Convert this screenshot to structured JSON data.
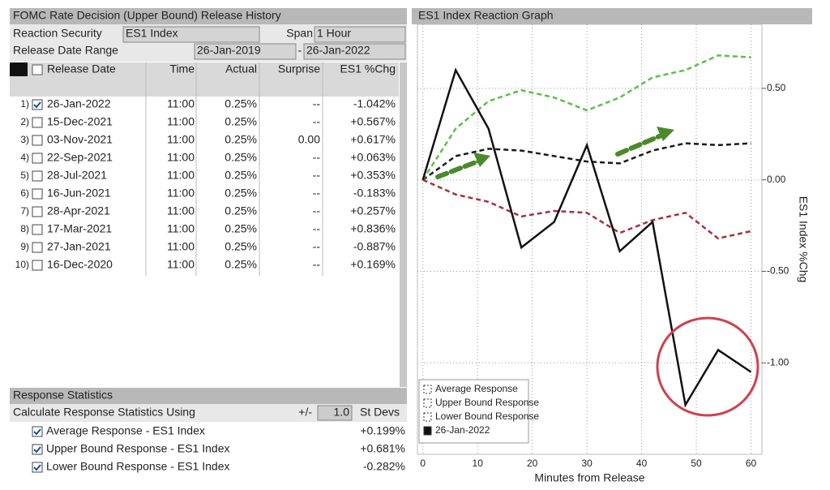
{
  "left_panel": {
    "title": "FOMC Rate Decision (Upper Bound) Release History",
    "reaction_security_label": "Reaction Security",
    "reaction_security": "ES1 Index",
    "span_label": "Span",
    "span": "1 Hour",
    "date_range_label": "Release Date Range",
    "date_from": "26-Jan-2019",
    "range_separator": "-",
    "date_to": "26-Jan-2022",
    "columns": [
      "Release Date",
      "Time",
      "Actual",
      "Surprise",
      "ES1 %Chg"
    ],
    "rows": [
      [
        "1)",
        "26-Jan-2022",
        "11:00",
        "0.25%",
        "--",
        "-1.042%"
      ],
      [
        "2)",
        "15-Dec-2021",
        "11:00",
        "0.25%",
        "--",
        "+0.567%"
      ],
      [
        "3)",
        "03-Nov-2021",
        "11:00",
        "0.25%",
        "0.00",
        "+0.617%"
      ],
      [
        "4)",
        "22-Sep-2021",
        "11:00",
        "0.25%",
        "--",
        "+0.063%"
      ],
      [
        "5)",
        "28-Jul-2021",
        "11:00",
        "0.25%",
        "--",
        "+0.353%"
      ],
      [
        "6)",
        "16-Jun-2021",
        "11:00",
        "0.25%",
        "--",
        "-0.183%"
      ],
      [
        "7)",
        "28-Apr-2021",
        "11:00",
        "0.25%",
        "--",
        "+0.257%"
      ],
      [
        "8)",
        "17-Mar-2021",
        "11:00",
        "0.25%",
        "--",
        "+0.836%"
      ],
      [
        "9)",
        "27-Jan-2021",
        "11:00",
        "0.25%",
        "--",
        "-0.887%"
      ],
      [
        "10)",
        "16-Dec-2020",
        "11:00",
        "0.25%",
        "--",
        "+0.169%"
      ]
    ]
  },
  "stats": {
    "title": "Response Statistics",
    "calc_label": "Calculate Response Statistics Using",
    "plus_minus": "+/-",
    "devs": "1.0",
    "devs_unit": "St Devs",
    "rows": [
      [
        "Average Response - ES1 Index",
        "+0.199%"
      ],
      [
        "Upper Bound Response - ES1 Index",
        "+0.681%"
      ],
      [
        "Lower Bound Response - ES1 Index",
        "-0.282%"
      ]
    ]
  },
  "chart_data": {
    "type": "line",
    "title": "ES1 Index Reaction Graph",
    "x_label": "Minutes from Release",
    "y_label": "ES1 Index %Chg",
    "x": [
      0,
      6,
      12,
      18,
      24,
      30,
      36,
      42,
      48,
      54,
      60
    ],
    "series": [
      {
        "name": "Average Response",
        "color": "#1a1a1a",
        "style": "dashed",
        "values": [
          0,
          0.13,
          0.17,
          0.16,
          0.13,
          0.1,
          0.09,
          0.16,
          0.2,
          0.19,
          0.2
        ]
      },
      {
        "name": "Upper Bound Response",
        "color": "#5cbf4a",
        "style": "dashed",
        "values": [
          0,
          0.28,
          0.43,
          0.49,
          0.45,
          0.38,
          0.45,
          0.56,
          0.6,
          0.68,
          0.67
        ]
      },
      {
        "name": "Lower Bound Response",
        "color": "#a8303c",
        "style": "dashed",
        "values": [
          0,
          -0.08,
          -0.12,
          -0.2,
          -0.17,
          -0.18,
          -0.29,
          -0.22,
          -0.18,
          -0.32,
          -0.28
        ]
      },
      {
        "name": "26-Jan-2022",
        "color": "#111111",
        "style": "solid",
        "values": [
          0,
          0.6,
          0.28,
          -0.37,
          -0.23,
          0.19,
          -0.39,
          -0.23,
          -1.23,
          -0.93,
          -1.05
        ]
      }
    ],
    "xlim": [
      -1,
      62
    ],
    "ylim": [
      -1.5,
      0.85
    ],
    "xticks": [
      0,
      10,
      20,
      30,
      40,
      50,
      60
    ],
    "yticks": [
      {
        "value": 0.5,
        "label": "0.50"
      },
      {
        "value": 0,
        "label": "0.00"
      },
      {
        "value": -0.5,
        "label": "-0.50"
      },
      {
        "value": -1,
        "label": "-1.00"
      }
    ],
    "grid": true,
    "legend": "lower left"
  }
}
